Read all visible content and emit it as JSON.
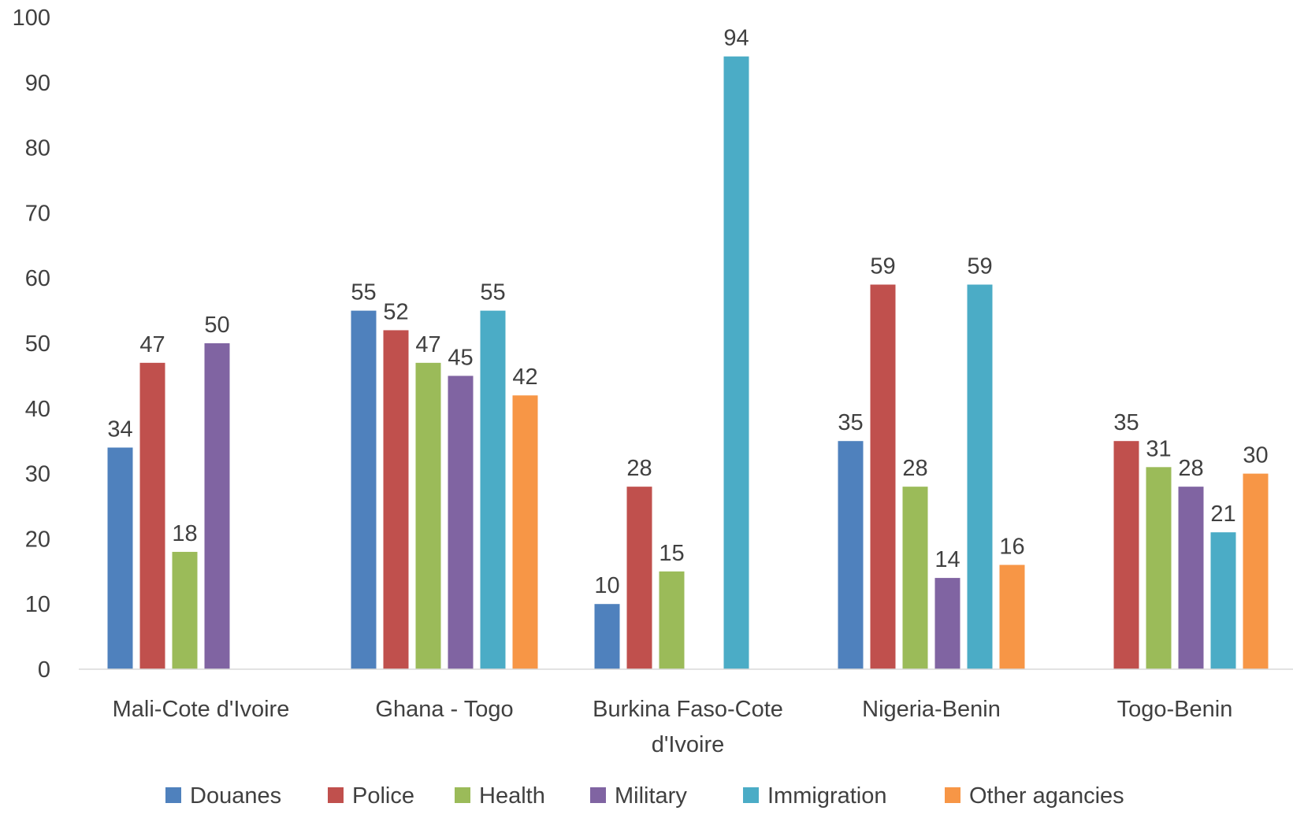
{
  "chart_data": {
    "type": "bar",
    "title": "",
    "xlabel": "",
    "ylabel": "",
    "ylim": [
      0,
      100
    ],
    "yticks": [
      0,
      10,
      20,
      30,
      40,
      50,
      60,
      70,
      80,
      90,
      100
    ],
    "grid": false,
    "legend_position": "bottom",
    "categories": [
      [
        "Mali-Cote d'Ivoire"
      ],
      [
        "Ghana - Togo"
      ],
      [
        "Burkina Faso-Cote",
        "d'Ivoire"
      ],
      [
        "Nigeria-Benin"
      ],
      [
        "Togo-Benin"
      ]
    ],
    "series": [
      {
        "name": "Douanes",
        "color": "#4F81BD",
        "values": [
          34,
          55,
          10,
          35,
          null
        ]
      },
      {
        "name": "Police",
        "color": "#C0504D",
        "values": [
          47,
          52,
          28,
          59,
          35
        ]
      },
      {
        "name": "Health",
        "color": "#9BBB59",
        "values": [
          18,
          47,
          15,
          28,
          31
        ]
      },
      {
        "name": "Military",
        "color": "#8064A2",
        "values": [
          50,
          45,
          null,
          14,
          28
        ]
      },
      {
        "name": "Immigration",
        "color": "#4BACC6",
        "values": [
          null,
          55,
          94,
          59,
          21
        ]
      },
      {
        "name": "Other agancies",
        "color": "#F79646",
        "values": [
          null,
          42,
          null,
          16,
          30
        ]
      }
    ]
  }
}
